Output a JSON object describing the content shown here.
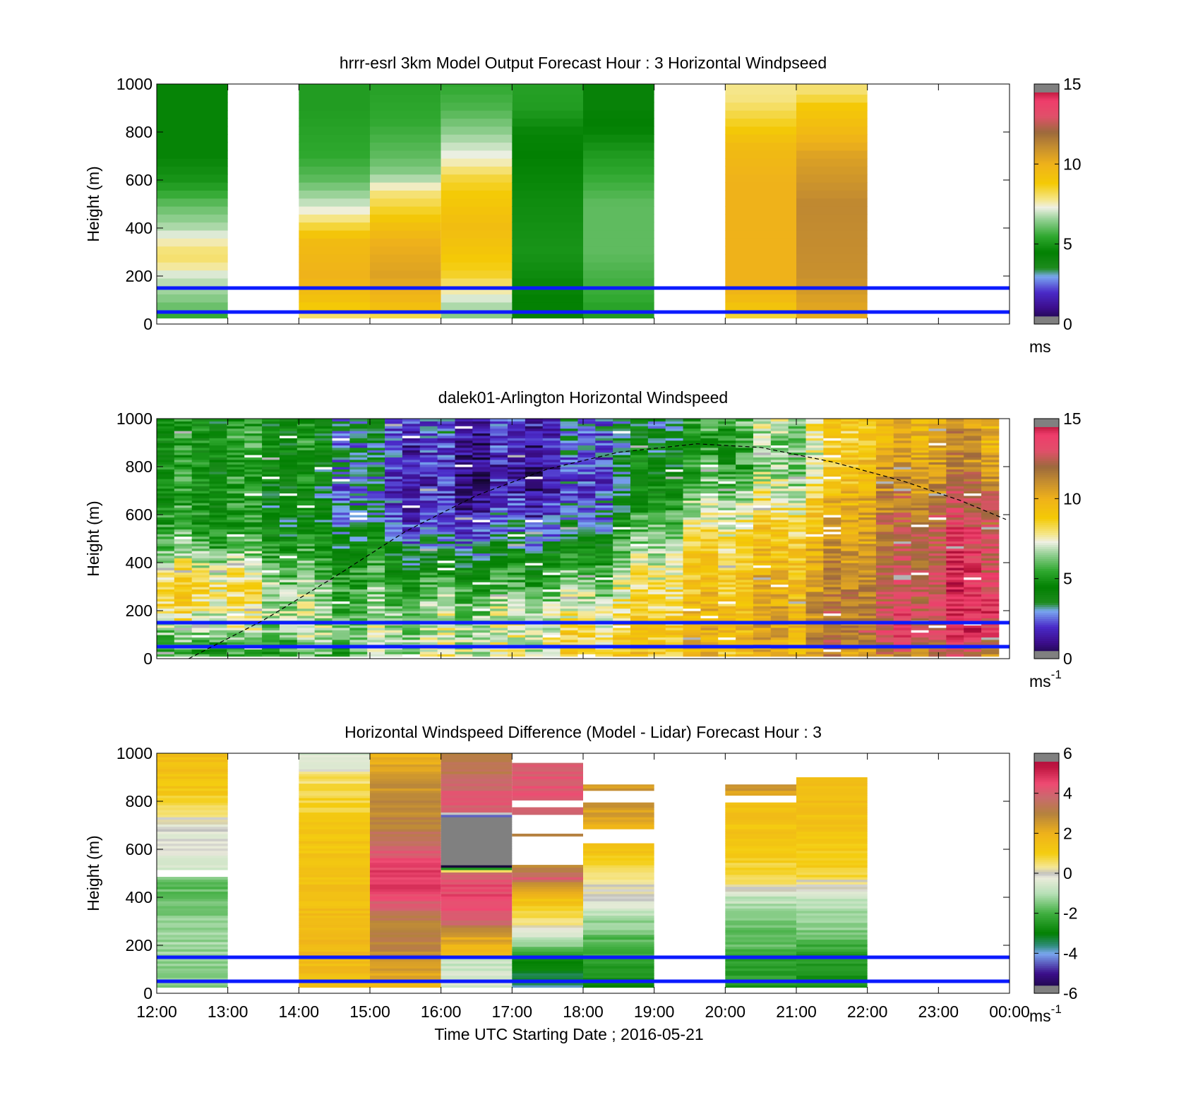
{
  "chart_data": [
    {
      "type": "heatmap",
      "title": "hrrr-esrl 3km Model Output   Forecast Hour : 3 Horizontal Windpseed",
      "ylabel": "Height (m)",
      "xlabel": "",
      "ylim": [
        0,
        1000
      ],
      "yticks": [
        0,
        200,
        400,
        600,
        800,
        1000
      ],
      "xlim": [
        12,
        24
      ],
      "colorbar": {
        "label": "ms",
        "superscript": "",
        "range": [
          0,
          15
        ],
        "ticks": [
          0,
          5,
          10,
          15
        ]
      },
      "reference_lines_m": [
        50,
        150
      ],
      "hour_columns": [
        {
          "start": 12,
          "bottom": 25,
          "top": 1000,
          "profile": [
            [
              0,
              4.6
            ],
            [
              60,
              6
            ],
            [
              120,
              6.5
            ],
            [
              200,
              7
            ],
            [
              260,
              8
            ],
            [
              300,
              8
            ],
            [
              350,
              7.5
            ],
            [
              400,
              6.8
            ],
            [
              500,
              6
            ],
            [
              600,
              5
            ],
            [
              700,
              4.6
            ],
            [
              1000,
              4.6
            ]
          ]
        },
        {
          "start": 14,
          "bottom": 25,
          "top": 1000,
          "profile": [
            [
              0,
              7
            ],
            [
              80,
              9
            ],
            [
              200,
              10
            ],
            [
              350,
              9.5
            ],
            [
              430,
              8
            ],
            [
              500,
              7
            ],
            [
              600,
              6
            ],
            [
              700,
              5.5
            ],
            [
              900,
              5.2
            ],
            [
              1000,
              5.2
            ]
          ]
        },
        {
          "start": 15,
          "bottom": 25,
          "top": 1000,
          "profile": [
            [
              0,
              7
            ],
            [
              80,
              9.5
            ],
            [
              200,
              10.5
            ],
            [
              350,
              10
            ],
            [
              480,
              8.5
            ],
            [
              560,
              7.8
            ],
            [
              620,
              6.5
            ],
            [
              700,
              6
            ],
            [
              850,
              5.5
            ],
            [
              1000,
              5.3
            ]
          ]
        },
        {
          "start": 16,
          "bottom": 25,
          "top": 1000,
          "profile": [
            [
              0,
              6
            ],
            [
              100,
              7
            ],
            [
              200,
              8.5
            ],
            [
              400,
              9.5
            ],
            [
              600,
              8.5
            ],
            [
              680,
              7.5
            ],
            [
              800,
              6.5
            ],
            [
              900,
              5.8
            ],
            [
              1000,
              5.5
            ]
          ]
        },
        {
          "start": 17,
          "bottom": 25,
          "top": 1000,
          "profile": [
            [
              0,
              4.3
            ],
            [
              100,
              4.5
            ],
            [
              300,
              5
            ],
            [
              500,
              4.8
            ],
            [
              700,
              4.5
            ],
            [
              800,
              4.6
            ],
            [
              900,
              5.2
            ],
            [
              1000,
              5.3
            ]
          ]
        },
        {
          "start": 18,
          "bottom": 25,
          "top": 1000,
          "profile": [
            [
              0,
              5
            ],
            [
              100,
              5.5
            ],
            [
              300,
              6
            ],
            [
              500,
              6
            ],
            [
              700,
              5.2
            ],
            [
              800,
              4.6
            ],
            [
              900,
              4.3
            ],
            [
              1000,
              4.3
            ]
          ]
        },
        {
          "start": 20,
          "bottom": 25,
          "top": 1000,
          "profile": [
            [
              0,
              7.2
            ],
            [
              60,
              9
            ],
            [
              150,
              10
            ],
            [
              400,
              10
            ],
            [
              600,
              10
            ],
            [
              750,
              9.5
            ],
            [
              850,
              8.5
            ],
            [
              950,
              7.8
            ],
            [
              1000,
              7.8
            ]
          ]
        },
        {
          "start": 21,
          "bottom": 25,
          "top": 1000,
          "profile": [
            [
              0,
              10
            ],
            [
              200,
              11
            ],
            [
              500,
              11.2
            ],
            [
              700,
              10.5
            ],
            [
              820,
              9.5
            ],
            [
              920,
              8.8
            ],
            [
              960,
              8
            ],
            [
              1000,
              8
            ]
          ]
        }
      ]
    },
    {
      "type": "heatmap",
      "title": "dalek01-Arlington  Horizontal Windspeed",
      "ylabel": "Height (m)",
      "xlabel": "",
      "ylim": [
        0,
        1000
      ],
      "yticks": [
        0,
        200,
        400,
        600,
        800,
        1000
      ],
      "xlim": [
        12,
        24
      ],
      "colorbar": {
        "label": "ms",
        "superscript": "-1",
        "range": [
          0,
          15
        ],
        "ticks": [
          0,
          5,
          10,
          15
        ]
      },
      "reference_lines_m": [
        50,
        150
      ],
      "coverage": {
        "start": 12,
        "end": 23.85,
        "bottom": 10,
        "top": 1000,
        "columns": 48
      },
      "overlay_curve": {
        "style": "dashed",
        "points": [
          [
            12.45,
            0
          ],
          [
            13.5,
            160
          ],
          [
            14.5,
            340
          ],
          [
            15.5,
            530
          ],
          [
            16.5,
            680
          ],
          [
            17.5,
            790
          ],
          [
            18.5,
            860
          ],
          [
            19.6,
            895
          ],
          [
            20.5,
            880
          ],
          [
            21.5,
            820
          ],
          [
            22.5,
            740
          ],
          [
            23.3,
            660
          ],
          [
            23.95,
            580
          ]
        ]
      },
      "anchors_hour": [
        12,
        13,
        14,
        15,
        16,
        17,
        18,
        19,
        20,
        21,
        22,
        23,
        23.9
      ],
      "anchor_profiles_heights": [
        0,
        100,
        200,
        300,
        400,
        500,
        600,
        700,
        800,
        900,
        1000
      ],
      "anchor_profiles": [
        [
          5,
          6,
          8,
          9,
          7,
          5.5,
          5,
          4.5,
          4.5,
          4.5,
          4.5
        ],
        [
          5,
          6.5,
          7.5,
          8.5,
          7,
          5.5,
          5,
          5,
          5,
          5,
          5
        ],
        [
          5.5,
          6.5,
          7,
          6.5,
          5.5,
          4.5,
          4,
          4,
          4.5,
          4.8,
          4.5
        ],
        [
          6,
          6.5,
          6,
          5.5,
          5,
          4,
          3,
          2.5,
          2.5,
          2.8,
          3
        ],
        [
          7.5,
          7,
          6.5,
          5.5,
          4,
          2.5,
          1.5,
          1.2,
          1.4,
          1.8,
          2.2
        ],
        [
          7.5,
          7,
          6.8,
          5.5,
          4.5,
          3,
          2,
          1.3,
          1.2,
          1.4,
          1.8
        ],
        [
          8,
          8.5,
          7,
          6.5,
          5,
          3.5,
          2.5,
          2,
          2,
          2.5,
          3
        ],
        [
          9,
          9.3,
          8.8,
          8,
          7.5,
          6.5,
          5.5,
          4.8,
          4.5,
          4.2,
          3.5
        ],
        [
          9.5,
          9.7,
          9.6,
          9.4,
          9,
          8.5,
          7.5,
          6.5,
          5.5,
          5,
          6
        ],
        [
          10,
          10.5,
          10.3,
          10,
          9.6,
          9.3,
          8.5,
          7.5,
          6.5,
          6.5,
          7.5
        ],
        [
          10.8,
          12.5,
          12.2,
          11.8,
          11.4,
          11,
          10.8,
          10.5,
          10,
          9.5,
          9.5
        ],
        [
          11.5,
          13.5,
          13.8,
          13.5,
          13.2,
          13,
          12.5,
          11.5,
          11,
          10.5,
          10.8
        ],
        [
          11.5,
          14,
          14.2,
          13.8,
          13.5,
          13.2,
          13,
          12.5,
          11,
          10.5,
          10.5
        ]
      ]
    },
    {
      "type": "heatmap",
      "title": "Horizontal Windspeed Difference (Model - Lidar) Forecast Hour : 3",
      "ylabel": "Height (m)",
      "xlabel": "Time UTC  Starting Date ; 2016-05-21",
      "ylim": [
        0,
        1000
      ],
      "yticks": [
        0,
        200,
        400,
        600,
        800,
        1000
      ],
      "xlim": [
        12,
        24
      ],
      "xticks": [
        12,
        13,
        14,
        15,
        16,
        17,
        18,
        19,
        20,
        21,
        22,
        23,
        24
      ],
      "xticklabels": [
        "12:00",
        "13:00",
        "14:00",
        "15:00",
        "16:00",
        "17:00",
        "18:00",
        "19:00",
        "20:00",
        "21:00",
        "22:00",
        "23:00",
        "00:00"
      ],
      "colorbar": {
        "label": "ms",
        "superscript": "-1",
        "range": [
          -6,
          6
        ],
        "ticks": [
          -6,
          -4,
          -2,
          0,
          2,
          4,
          6
        ]
      },
      "reference_lines_m": [
        50,
        150
      ],
      "hour_columns": [
        {
          "start": 12,
          "bottom": 25,
          "top": 1000,
          "gaps": [
            [
              490,
              510
            ]
          ],
          "profile": [
            [
              0,
              -1.5
            ],
            [
              150,
              -1.2
            ],
            [
              300,
              -1.3
            ],
            [
              400,
              -1.8
            ],
            [
              480,
              -1.6
            ],
            [
              520,
              -0.5
            ],
            [
              700,
              -0.2
            ],
            [
              750,
              0.5
            ],
            [
              850,
              1.2
            ],
            [
              950,
              1.5
            ],
            [
              1000,
              1.5
            ]
          ]
        },
        {
          "start": 14,
          "bottom": 25,
          "top": 1000,
          "profile": [
            [
              0,
              1.5
            ],
            [
              200,
              1.8
            ],
            [
              400,
              1.5
            ],
            [
              600,
              1.3
            ],
            [
              700,
              1.2
            ],
            [
              800,
              0.8
            ],
            [
              900,
              0.5
            ],
            [
              960,
              -0.5
            ],
            [
              1000,
              -0.5
            ]
          ]
        },
        {
          "start": 15,
          "bottom": 25,
          "top": 1000,
          "profile": [
            [
              0,
              1.5
            ],
            [
              100,
              2.5
            ],
            [
              200,
              3
            ],
            [
              300,
              3
            ],
            [
              400,
              4.5
            ],
            [
              500,
              4.8
            ],
            [
              600,
              4
            ],
            [
              700,
              3
            ],
            [
              800,
              2.8
            ],
            [
              900,
              2.5
            ],
            [
              1000,
              2
            ]
          ]
        },
        {
          "start": 16,
          "bottom": 25,
          "top": 1000,
          "profile": [
            [
              0,
              -0.5
            ],
            [
              140,
              -0.8
            ],
            [
              160,
              1.5
            ],
            [
              250,
              2.5
            ],
            [
              300,
              4
            ],
            [
              400,
              4.5
            ],
            [
              450,
              4.5
            ],
            [
              500,
              4
            ],
            [
              540,
              -9
            ],
            [
              730,
              -9
            ],
            [
              760,
              4.2
            ],
            [
              850,
              4
            ],
            [
              900,
              3.5
            ],
            [
              1000,
              3
            ]
          ]
        },
        {
          "start": 17,
          "bottom": 25,
          "top": 960,
          "gaps": [
            [
              540,
              650
            ],
            [
              670,
              740
            ],
            [
              780,
              800
            ]
          ],
          "profile": [
            [
              0,
              -4
            ],
            [
              150,
              -2.5
            ],
            [
              200,
              -1.5
            ],
            [
              300,
              0.5
            ],
            [
              400,
              1.5
            ],
            [
              450,
              2.5
            ],
            [
              480,
              4
            ],
            [
              520,
              3
            ],
            [
              660,
              3
            ],
            [
              750,
              3.8
            ],
            [
              850,
              4.3
            ],
            [
              960,
              4
            ]
          ]
        },
        {
          "start": 18,
          "bottom": 25,
          "top": 870,
          "gaps": [
            [
              630,
              680
            ],
            [
              800,
              840
            ]
          ],
          "profile": [
            [
              0,
              -3
            ],
            [
              100,
              -2.5
            ],
            [
              200,
              -2
            ],
            [
              300,
              -1.2
            ],
            [
              400,
              -0.2
            ],
            [
              500,
              0.5
            ],
            [
              600,
              1.5
            ],
            [
              700,
              2
            ],
            [
              780,
              2.5
            ],
            [
              860,
              2.5
            ],
            [
              870,
              2.5
            ]
          ]
        },
        {
          "start": 20,
          "bottom": 25,
          "top": 870,
          "gaps": [
            [
              800,
              820
            ]
          ],
          "profile": [
            [
              0,
              -2.5
            ],
            [
              150,
              -2.2
            ],
            [
              200,
              -1.8
            ],
            [
              300,
              -1.5
            ],
            [
              400,
              -0.8
            ],
            [
              450,
              0.5
            ],
            [
              600,
              1.2
            ],
            [
              800,
              1.5
            ],
            [
              850,
              2.5
            ],
            [
              870,
              2.5
            ]
          ]
        },
        {
          "start": 21,
          "bottom": 25,
          "top": 900,
          "profile": [
            [
              0,
              -2.5
            ],
            [
              150,
              -2.5
            ],
            [
              250,
              -1.5
            ],
            [
              400,
              -0.8
            ],
            [
              450,
              0
            ],
            [
              500,
              0.8
            ],
            [
              600,
              1.2
            ],
            [
              800,
              1.5
            ],
            [
              900,
              1.5
            ]
          ]
        }
      ]
    }
  ]
}
